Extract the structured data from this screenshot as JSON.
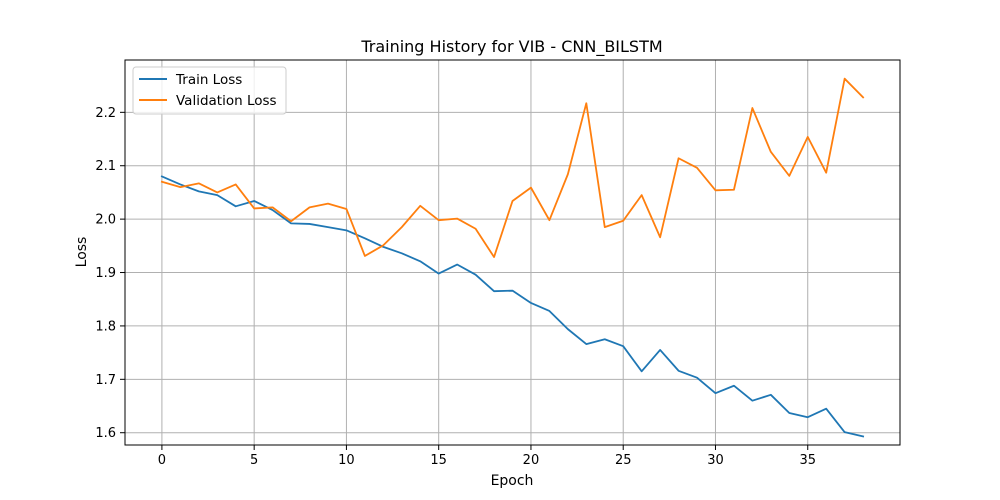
{
  "chart_data": {
    "type": "line",
    "title": "Training History for VIB - CNN_BILSTM",
    "xlabel": "Epoch",
    "ylabel": "Loss",
    "xlim": [
      -2,
      40
    ],
    "ylim": [
      1.577,
      2.298
    ],
    "xticks": [
      0,
      5,
      10,
      15,
      20,
      25,
      30,
      35
    ],
    "yticks": [
      1.6,
      1.7,
      1.8,
      1.9,
      2.0,
      2.1,
      2.2
    ],
    "xtick_labels": [
      "0",
      "5",
      "10",
      "15",
      "20",
      "25",
      "30",
      "35"
    ],
    "ytick_labels": [
      "1.6",
      "1.7",
      "1.8",
      "1.9",
      "2.0",
      "2.1",
      "2.2"
    ],
    "grid": true,
    "legend_position": "top-left",
    "x": [
      0,
      1,
      2,
      3,
      4,
      5,
      6,
      7,
      8,
      9,
      10,
      11,
      12,
      13,
      14,
      15,
      16,
      17,
      18,
      19,
      20,
      21,
      22,
      23,
      24,
      25,
      26,
      27,
      28,
      29,
      30,
      31,
      32,
      33,
      34,
      35,
      36,
      37,
      38
    ],
    "series": [
      {
        "name": "Train Loss",
        "color": "#1f77b4",
        "values": [
          2.08,
          2.065,
          2.052,
          2.045,
          2.024,
          2.034,
          2.017,
          1.992,
          1.991,
          1.985,
          1.979,
          1.964,
          1.948,
          1.936,
          1.921,
          1.898,
          1.915,
          1.896,
          1.865,
          1.866,
          1.843,
          1.828,
          1.794,
          1.766,
          1.775,
          1.762,
          1.715,
          1.755,
          1.716,
          1.703,
          1.674,
          1.688,
          1.66,
          1.671,
          1.637,
          1.629,
          1.645,
          1.601,
          1.593
        ]
      },
      {
        "name": "Validation Loss",
        "color": "#ff7f0e",
        "values": [
          2.07,
          2.06,
          2.067,
          2.05,
          2.065,
          2.02,
          2.022,
          1.996,
          2.022,
          2.029,
          2.019,
          1.931,
          1.951,
          1.985,
          2.025,
          1.998,
          2.001,
          1.982,
          1.929,
          2.034,
          2.059,
          1.998,
          2.084,
          2.217,
          1.985,
          1.997,
          2.045,
          1.966,
          2.114,
          2.096,
          2.054,
          2.055,
          2.208,
          2.126,
          2.081,
          2.154,
          2.087,
          2.263,
          2.228
        ]
      }
    ]
  }
}
